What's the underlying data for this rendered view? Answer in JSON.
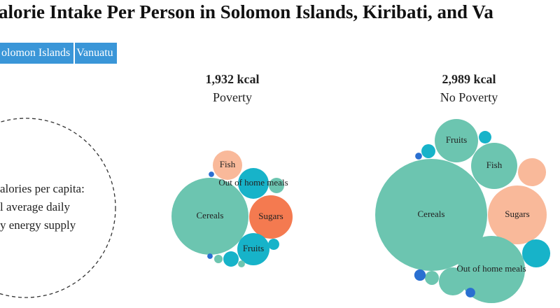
{
  "header": {
    "title": "alorie Intake Per Person in Solomon Islands, Kiribati, and Va",
    "tabs": [
      "olomon Islands",
      "Vanuatu"
    ]
  },
  "legend": {
    "lines": [
      "alories per capita:",
      "l average daily",
      "y energy supply"
    ]
  },
  "clusters": [
    {
      "total": 1932,
      "total_label": "1,932 kcal",
      "label": "Poverty",
      "bubbles": [
        {
          "name": "Cereals",
          "value": 1001,
          "color": "#6cc5b0"
        },
        {
          "name": "Sugars",
          "value": 318,
          "color": "#f47a50"
        },
        {
          "name": "Out of home meals",
          "value": 160,
          "color": "#17b3c9"
        },
        {
          "name": "Fish",
          "value": 146,
          "color": "#f9b99a"
        },
        {
          "name": "Fruits",
          "value": 175,
          "color": "#17b3c9"
        },
        {
          "name": null,
          "value": 40,
          "color": "#6cc5b0"
        },
        {
          "name": null,
          "value": 5,
          "color": "#2a6fd1"
        },
        {
          "name": null,
          "value": 21,
          "color": "#17b3c9"
        },
        {
          "name": null,
          "value": 40,
          "color": "#17b3c9"
        },
        {
          "name": null,
          "value": 12,
          "color": "#6cc5b0"
        },
        {
          "name": null,
          "value": 5,
          "color": "#2a6fd1"
        },
        {
          "name": null,
          "value": 8,
          "color": "#6cc5b0"
        }
      ]
    },
    {
      "total": 2989,
      "total_label": "2,989 kcal",
      "label": "No Poverty",
      "bubbles": [
        {
          "name": "Cereals",
          "value": 1353,
          "color": "#6cc5b0"
        },
        {
          "name": "Fruits",
          "value": 203,
          "color": "#6cc5b0"
        },
        {
          "name": "Fish",
          "value": 230,
          "color": "#6cc5b0"
        },
        {
          "name": "Sugars",
          "value": 373,
          "color": "#f9b99a"
        },
        {
          "name": "Out of home meals",
          "value": 487,
          "color": "#6cc5b0"
        },
        {
          "name": null,
          "value": 85,
          "color": "#f9b99a"
        },
        {
          "name": null,
          "value": 85,
          "color": "#17b3c9"
        },
        {
          "name": null,
          "value": 17,
          "color": "#17b3c9"
        },
        {
          "name": null,
          "value": 21,
          "color": "#17b3c9"
        },
        {
          "name": null,
          "value": 5,
          "color": "#2a6fd1"
        },
        {
          "name": null,
          "value": 21,
          "color": "#6cc5b0"
        },
        {
          "name": null,
          "value": 14,
          "color": "#2a6fd1"
        },
        {
          "name": null,
          "value": 85,
          "color": "#6cc5b0"
        },
        {
          "name": null,
          "value": 10,
          "color": "#2a6fd1"
        }
      ]
    }
  ]
}
